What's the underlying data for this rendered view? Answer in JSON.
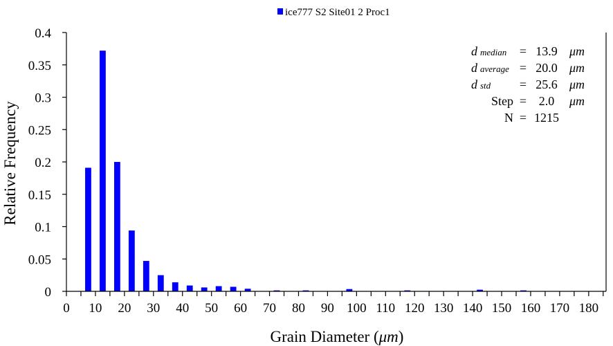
{
  "chart_data": {
    "type": "bar",
    "title": "",
    "legend": {
      "label": "ice777 S2 Site01 2 Proc1",
      "placement": "top-center"
    },
    "xlabel": "Grain Diameter (",
    "xlabel_unit": "μm",
    "xlabel_close": ")",
    "ylabel": "Relative Frequency",
    "xlim": [
      0,
      186
    ],
    "ylim": [
      0,
      0.4
    ],
    "x_ticks": [
      0,
      10,
      20,
      30,
      40,
      50,
      60,
      70,
      80,
      90,
      100,
      110,
      120,
      130,
      140,
      150,
      160,
      170,
      180
    ],
    "x_tick_labels": [
      "0",
      "10",
      "20",
      "30",
      "40",
      "50",
      "60",
      "70",
      "80",
      "90",
      "100",
      "110",
      "120",
      "130",
      "140",
      "150",
      "160",
      "170",
      "180"
    ],
    "y_ticks": [
      0,
      0.05,
      0.1,
      0.15,
      0.2,
      0.25,
      0.3,
      0.35,
      0.4
    ],
    "y_tick_labels": [
      "0",
      "0.05",
      "0.1",
      "0.15",
      "0.2",
      "0.25",
      "0.3",
      "0.35",
      "0.4"
    ],
    "grid": false,
    "bar_color": "#0000ff",
    "x": [
      7.5,
      12.5,
      17.5,
      22.5,
      27.5,
      32.5,
      37.5,
      42.5,
      47.5,
      52.5,
      57.5,
      62.5,
      67.5,
      72.5,
      77.5,
      82.5,
      87.5,
      92.5,
      97.5,
      102.5,
      107.5,
      112.5,
      117.5,
      122.5,
      127.5,
      132.5,
      137.5,
      142.5,
      147.5,
      152.5,
      157.5,
      162.5,
      167.5,
      172.5,
      177.5,
      182.5
    ],
    "values": [
      0.191,
      0.372,
      0.2,
      0.094,
      0.047,
      0.025,
      0.014,
      0.009,
      0.006,
      0.008,
      0.007,
      0.004,
      0.0005,
      0.0015,
      0,
      0.0015,
      0,
      0.0005,
      0.0035,
      0.0005,
      0,
      0,
      0.0015,
      0.0005,
      0.0005,
      0,
      0.0005,
      0.0025,
      0.0005,
      0,
      0.0015,
      0,
      0.0005,
      0.0005,
      0.0005,
      0.0005
    ],
    "stats": [
      {
        "symbol": "d",
        "sub": "median",
        "eq": "=",
        "value": "13.9",
        "unit": "μm"
      },
      {
        "symbol": "d",
        "sub": "average",
        "eq": "=",
        "value": "20.0",
        "unit": "μm"
      },
      {
        "symbol": "d",
        "sub": "std",
        "eq": "=",
        "value": "25.6",
        "unit": "μm"
      },
      {
        "symbol": "Step",
        "sub": "",
        "eq": "=",
        "value": "2.0",
        "unit": "μm"
      },
      {
        "symbol": "N",
        "sub": "",
        "eq": "=",
        "value": "1215",
        "unit": ""
      }
    ]
  }
}
